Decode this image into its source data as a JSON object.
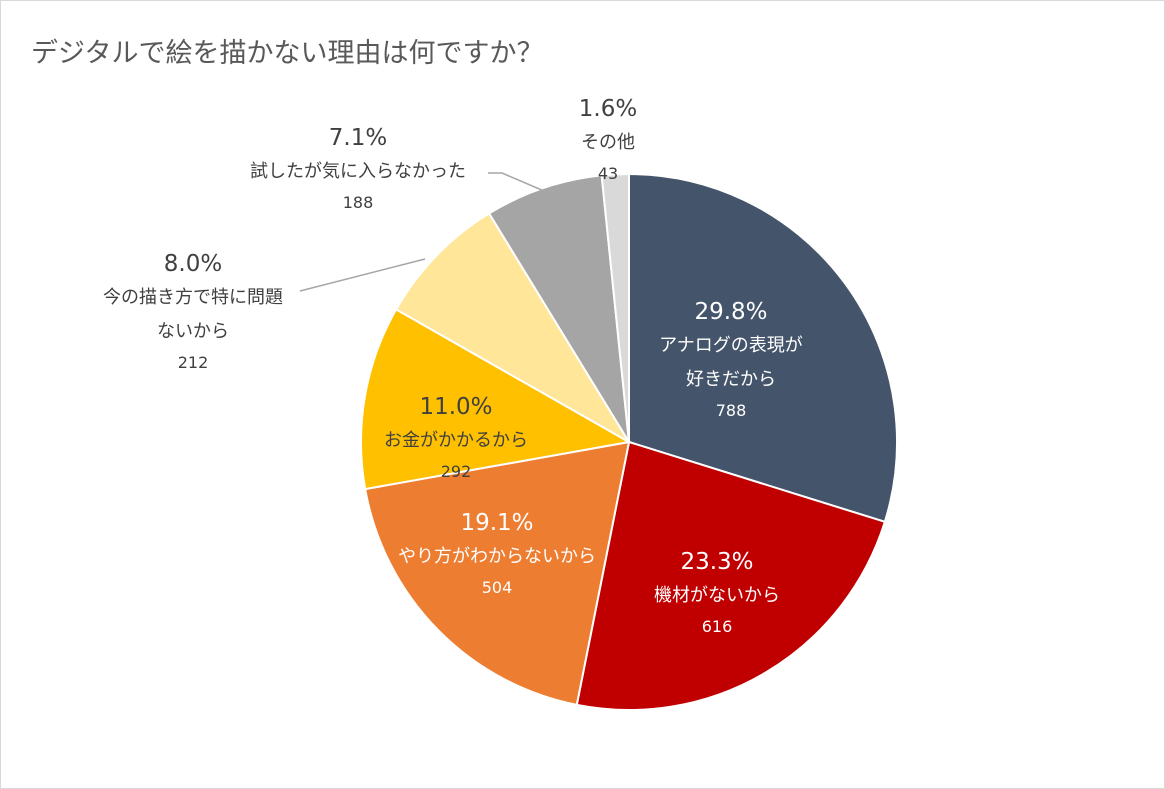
{
  "chart_data": {
    "type": "pie",
    "title": "デジタルで絵を描かない理由は何ですか？",
    "slices": [
      {
        "label_lines": [
          "アナログの表現が",
          "好きだから"
        ],
        "percent": "29.8%",
        "count": "788",
        "value": 788,
        "color": "#44546a",
        "label_color": "#ffffff"
      },
      {
        "label_lines": [
          "機材がないから"
        ],
        "percent": "23.3%",
        "count": "616",
        "value": 616,
        "color": "#c00000",
        "label_color": "#ffffff"
      },
      {
        "label_lines": [
          "やり方がわからないから"
        ],
        "percent": "19.1%",
        "count": "504",
        "value": 504,
        "color": "#ed7d31",
        "label_color": "#ffffff"
      },
      {
        "label_lines": [
          "お金がかかるから"
        ],
        "percent": "11.0%",
        "count": "292",
        "value": 292,
        "color": "#ffc000",
        "label_color": "#404040"
      },
      {
        "label_lines": [
          "今の描き方で特に問題",
          "ないから"
        ],
        "percent": "8.0%",
        "count": "212",
        "value": 212,
        "color": "#ffe699",
        "label_color": "#404040"
      },
      {
        "label_lines": [
          "試したが気に入らなかった"
        ],
        "percent": "7.1%",
        "count": "188",
        "value": 188,
        "color": "#a5a5a5",
        "label_color": "#404040"
      },
      {
        "label_lines": [
          "その他"
        ],
        "percent": "1.6%",
        "count": "43",
        "value": 43,
        "color": "#d9d9d9",
        "label_color": "#404040"
      }
    ]
  }
}
